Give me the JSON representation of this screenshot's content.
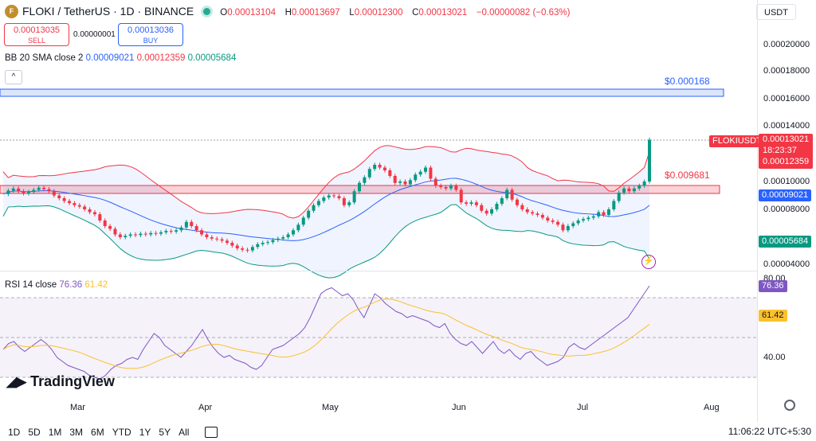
{
  "header": {
    "symbol_icon": "floki-coin-icon",
    "title": "FLOKI / TetherUS · 1D · BINANCE",
    "o_label": "O",
    "o_value": "0.00013104",
    "h_label": "H",
    "h_value": "0.00013697",
    "l_label": "L",
    "l_value": "0.00012300",
    "c_label": "C",
    "c_value": "0.00013021",
    "change": "−0.00000082 (−0.63%)"
  },
  "trade": {
    "sell_price": "0.00013035",
    "sell_label": "SELL",
    "spread": "0.00000001",
    "buy_price": "0.00013036",
    "buy_label": "BUY"
  },
  "bb_legend": {
    "name": "BB 20 SMA close 2",
    "basis": "0.00009021",
    "upper": "0.00012359",
    "lower": "0.00005684"
  },
  "collapse_label": "^",
  "currency": "USDT",
  "price_axis": [
    "0.00020000",
    "0.00018000",
    "0.00016000",
    "0.00014000",
    "0.00010000",
    "0.00008000",
    "0.00004000"
  ],
  "tags": {
    "symbol": "FLOKIUSDT",
    "last": "0.00013021",
    "countdown": "18:23:37",
    "upper": "0.00012359",
    "basis": "0.00009021",
    "lower": "0.00005684"
  },
  "annotations": {
    "resistance": "$0.000168",
    "support": "$0.009681"
  },
  "rsi": {
    "name": "RSI 14 close",
    "value": "76.36",
    "ma": "61.42",
    "axis_80": "80.00",
    "axis_40": "40.00"
  },
  "logo_text": "TradingView",
  "months": [
    "Mar",
    "Apr",
    "May",
    "Jun",
    "Jul",
    "Aug"
  ],
  "timeframes": [
    "1D",
    "5D",
    "1M",
    "3M",
    "6M",
    "YTD",
    "1Y",
    "5Y",
    "All"
  ],
  "clock": "11:06:22 UTC+5:30",
  "colors": {
    "up": "#089981",
    "down": "#f23645",
    "basis": "#2962ff",
    "rsi": "#7e57c2",
    "rsi_ma": "#fbc02d"
  },
  "chart_data": {
    "type": "candlestick",
    "bb_close_series": [
      9.1e-05,
      9.35e-05,
      9.5e-05,
      9.3e-05,
      9.15e-05,
      9.25e-05,
      9.4e-05,
      9.55e-05,
      9.45e-05,
      9.3e-05,
      9e-05,
      8.8e-05,
      8.6e-05,
      8.45e-05,
      8.3e-05,
      8.2e-05,
      8e-05,
      7.8e-05,
      7.65e-05,
      7.2e-05,
      6.8e-05,
      6.6e-05,
      6.2e-05,
      6e-05,
      6.1e-05,
      6.2e-05,
      6.15e-05,
      6.25e-05,
      6.2e-05,
      6.3e-05,
      6.25e-05,
      6.35e-05,
      6.45e-05,
      6.4e-05,
      6.5e-05,
      6.7e-05,
      7.1e-05,
      6.8e-05,
      6.5e-05,
      6.2e-05,
      6e-05,
      5.9e-05,
      5.85e-05,
      5.75e-05,
      5.6e-05,
      5.4e-05,
      5.2e-05,
      5.1e-05,
      5.05e-05,
      5.3e-05,
      5.5e-05,
      5.6e-05,
      5.65e-05,
      5.8e-05,
      5.9e-05,
      6e-05,
      6.2e-05,
      6.5e-05,
      6.9e-05,
      7.4e-05,
      7.9e-05,
      8.3e-05,
      8.6e-05,
      8.85e-05,
      9e-05,
      8.95e-05,
      8.8e-05,
      8.3e-05,
      8.5e-05,
      9.3e-05,
      9.9e-05,
      0.000103,
      0.000109,
      0.000112,
      0.00011,
      0.000108,
      0.000104,
      9.9e-05,
      0.0001,
      9.8e-05,
      0.000101,
      0.000105,
      0.000107,
      0.00011,
      0.000102,
      9.7e-05,
      9.6e-05,
      9.5e-05,
      9.7e-05,
      9.4e-05,
      8.5e-05,
      8.4e-05,
      8.5e-05,
      8.3e-05,
      7.9e-05,
      7.7e-05,
      8e-05,
      8.4e-05,
      8.8e-05,
      9.4e-05,
      8.7e-05,
      8.3e-05,
      8e-05,
      7.8e-05,
      7.7e-05,
      7.6e-05,
      7.4e-05,
      7.2e-05,
      7.1e-05,
      6.9e-05,
      6.5e-05,
      6.8e-05,
      7e-05,
      7.2e-05,
      7.3e-05,
      7.4e-05,
      7.5e-05,
      7.8e-05,
      7.6e-05,
      8e-05,
      8.6e-05,
      9.2e-05,
      9.5e-05,
      9.3e-05,
      9.5e-05,
      9.7e-05,
      0.0001,
      0.00013
    ],
    "rsi_series": [
      44,
      47,
      48,
      45,
      43,
      45,
      47,
      49,
      47,
      44,
      40,
      38,
      36,
      35,
      34,
      33,
      31,
      30,
      29,
      31,
      34,
      36,
      37,
      39,
      40,
      39,
      44,
      48,
      52,
      50,
      46,
      44,
      42,
      40,
      43,
      46,
      50,
      54,
      49,
      45,
      42,
      40,
      41,
      39,
      38,
      37,
      35,
      34,
      36,
      40,
      44,
      45,
      46,
      48,
      50,
      52,
      55,
      60,
      66,
      72,
      74,
      75,
      73,
      71,
      72,
      69,
      64,
      60,
      66,
      72,
      70,
      67,
      65,
      63,
      62,
      60,
      61,
      60,
      59,
      58,
      56,
      55,
      57,
      52,
      49,
      47,
      46,
      48,
      45,
      42,
      45,
      48,
      44,
      42,
      44,
      41,
      39,
      42,
      43,
      40,
      38,
      36,
      37,
      38,
      40,
      45,
      47,
      45,
      44,
      46,
      48,
      50,
      52,
      54,
      56,
      58,
      60,
      64,
      68,
      72,
      76
    ]
  }
}
